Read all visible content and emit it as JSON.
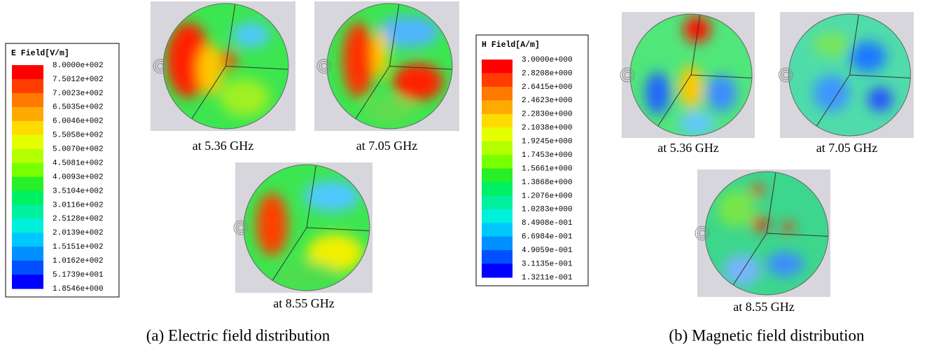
{
  "panel_a": {
    "legend": {
      "title": "E Field[V/m]",
      "labels": [
        "8.0000e+002",
        "7.5012e+002",
        "7.0023e+002",
        "6.5035e+002",
        "6.0046e+002",
        "5.5058e+002",
        "5.0070e+002",
        "4.5081e+002",
        "4.0093e+002",
        "3.5104e+002",
        "3.0116e+002",
        "2.5128e+002",
        "2.0139e+002",
        "1.5151e+002",
        "1.0162e+002",
        "5.1739e+001",
        "1.8546e+000"
      ]
    },
    "images": [
      {
        "caption": "at 5.36 GHz"
      },
      {
        "caption": "at 7.05 GHz"
      },
      {
        "caption": "at 8.55 GHz"
      }
    ],
    "caption": "(a) Electric field distribution"
  },
  "panel_b": {
    "legend": {
      "title": "H Field[A/m]",
      "labels": [
        "3.0000e+000",
        "2.8208e+000",
        "2.6415e+000",
        "2.4623e+000",
        "2.2830e+000",
        "2.1038e+000",
        "1.9245e+000",
        "1.7453e+000",
        "1.5661e+000",
        "1.3868e+000",
        "1.2076e+000",
        "1.0283e+000",
        "8.4908e-001",
        "6.6984e-001",
        "4.9059e-001",
        "3.1135e-001",
        "1.3211e-001"
      ]
    },
    "images": [
      {
        "caption": "at 5.36 GHz"
      },
      {
        "caption": "at 7.05 GHz"
      },
      {
        "caption": "at 8.55 GHz"
      }
    ],
    "caption": "(b) Magnetic field distribution"
  }
}
